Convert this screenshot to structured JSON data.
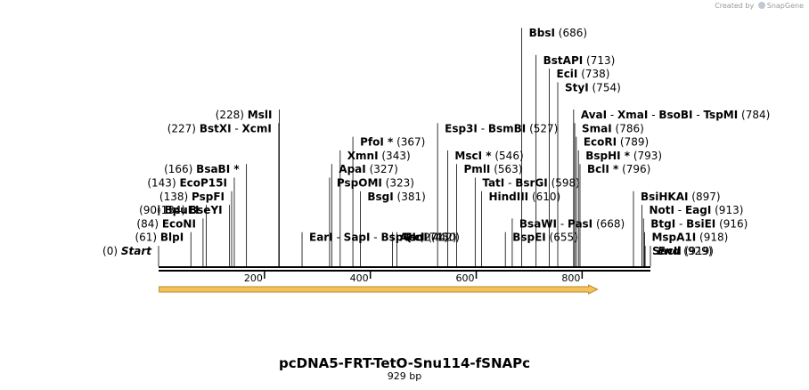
{
  "credit": {
    "prefix": "Created by",
    "brand": "SnapGene"
  },
  "map": {
    "title": "pcDNA5-FRT-TetO-Snu114-fSNAPc",
    "length_label": "929 bp",
    "length_bp": 929,
    "ticks": [
      {
        "pos": 200,
        "label": "200"
      },
      {
        "pos": 400,
        "label": "400"
      },
      {
        "pos": 600,
        "label": "600"
      },
      {
        "pos": 800,
        "label": "800"
      }
    ],
    "feature": {
      "start": 1,
      "end": 829,
      "direction": "forward",
      "fill": "#f5c25a",
      "stroke": "#b88a2b"
    },
    "colors": {
      "line": "#000000",
      "text": "#000000"
    },
    "sites": [
      {
        "pos": 0,
        "side": "left",
        "labels": [
          {
            "name": "Start",
            "italic": true
          }
        ],
        "position_label": "(0)"
      },
      {
        "pos": 61,
        "side": "left",
        "labels": [
          {
            "name": "BlpI"
          }
        ],
        "position_label": "(61)"
      },
      {
        "pos": 84,
        "side": "left",
        "labels": [
          {
            "name": "EcoNI"
          }
        ],
        "position_label": "(84)"
      },
      {
        "pos": 90,
        "side": "left",
        "labels": [
          {
            "name": "BpuEI"
          }
        ],
        "position_label": "(90)"
      },
      {
        "pos": 134,
        "side": "left",
        "labels": [
          {
            "name": "BseYI"
          }
        ],
        "position_label": "(134)"
      },
      {
        "pos": 138,
        "side": "left",
        "labels": [
          {
            "name": "PspFI"
          }
        ],
        "position_label": "(138)"
      },
      {
        "pos": 143,
        "side": "left",
        "labels": [
          {
            "name": "EcoP15I"
          }
        ],
        "position_label": "(143)"
      },
      {
        "pos": 166,
        "side": "left",
        "labels": [
          {
            "name": "BsaBI",
            "star": true
          }
        ],
        "position_label": "(166)"
      },
      {
        "pos": 227,
        "side": "left",
        "labels": [
          {
            "name": "BstXI"
          },
          {
            "name": "XcmI"
          }
        ],
        "position_label": "(227)"
      },
      {
        "pos": 228,
        "side": "left",
        "labels": [
          {
            "name": "MslI"
          }
        ],
        "position_label": "(228)"
      },
      {
        "pos": 271,
        "side": "right",
        "labels": [
          {
            "name": "EarI"
          },
          {
            "name": "SapI"
          },
          {
            "name": "BspQI"
          }
        ],
        "position_label": "(271)"
      },
      {
        "pos": 323,
        "side": "right",
        "labels": [
          {
            "name": "PspOMI"
          }
        ],
        "position_label": "(323)"
      },
      {
        "pos": 327,
        "side": "right",
        "labels": [
          {
            "name": "ApaI"
          }
        ],
        "position_label": "(327)"
      },
      {
        "pos": 343,
        "side": "right",
        "labels": [
          {
            "name": "XmnI"
          }
        ],
        "position_label": "(343)"
      },
      {
        "pos": 367,
        "side": "right",
        "labels": [
          {
            "name": "PfoI",
            "star": true
          }
        ],
        "position_label": "(367)"
      },
      {
        "pos": 381,
        "side": "right",
        "labels": [
          {
            "name": "BsgI"
          }
        ],
        "position_label": "(381)"
      },
      {
        "pos": 442,
        "side": "right",
        "labels": [
          {
            "name": "AccI"
          }
        ],
        "position_label": "(442)"
      },
      {
        "pos": 450,
        "side": "right",
        "labels": [
          {
            "name": "TsoI"
          }
        ],
        "position_label": "(450)"
      },
      {
        "pos": 527,
        "side": "right",
        "labels": [
          {
            "name": "Esp3I"
          },
          {
            "name": "BsmBI"
          }
        ],
        "position_label": "(527)"
      },
      {
        "pos": 546,
        "side": "right",
        "labels": [
          {
            "name": "MscI",
            "star": true
          }
        ],
        "position_label": "(546)"
      },
      {
        "pos": 563,
        "side": "right",
        "labels": [
          {
            "name": "PmlI"
          }
        ],
        "position_label": "(563)"
      },
      {
        "pos": 598,
        "side": "right",
        "labels": [
          {
            "name": "TatI"
          },
          {
            "name": "BsrGI"
          }
        ],
        "position_label": "(598)"
      },
      {
        "pos": 610,
        "side": "right",
        "labels": [
          {
            "name": "HindIII"
          }
        ],
        "position_label": "(610)"
      },
      {
        "pos": 655,
        "side": "right",
        "labels": [
          {
            "name": "BspEI"
          }
        ],
        "position_label": "(655)"
      },
      {
        "pos": 668,
        "side": "right",
        "labels": [
          {
            "name": "BsaWI"
          },
          {
            "name": "PasI"
          }
        ],
        "position_label": "(668)"
      },
      {
        "pos": 686,
        "side": "right",
        "labels": [
          {
            "name": "BbsI"
          }
        ],
        "position_label": "(686)"
      },
      {
        "pos": 713,
        "side": "right",
        "labels": [
          {
            "name": "BstAPI"
          }
        ],
        "position_label": "(713)"
      },
      {
        "pos": 738,
        "side": "right",
        "labels": [
          {
            "name": "EciI"
          }
        ],
        "position_label": "(738)"
      },
      {
        "pos": 754,
        "side": "right",
        "labels": [
          {
            "name": "StyI"
          }
        ],
        "position_label": "(754)"
      },
      {
        "pos": 784,
        "side": "right",
        "labels": [
          {
            "name": "AvaI"
          },
          {
            "name": "XmaI"
          },
          {
            "name": "BsoBI"
          },
          {
            "name": "TspMI"
          }
        ],
        "position_label": "(784)"
      },
      {
        "pos": 786,
        "side": "right",
        "labels": [
          {
            "name": "SmaI"
          }
        ],
        "position_label": "(786)"
      },
      {
        "pos": 789,
        "side": "right",
        "labels": [
          {
            "name": "EcoRI"
          }
        ],
        "position_label": "(789)"
      },
      {
        "pos": 793,
        "side": "right",
        "labels": [
          {
            "name": "BspHI",
            "star": true
          }
        ],
        "position_label": "(793)"
      },
      {
        "pos": 796,
        "side": "right",
        "labels": [
          {
            "name": "BclI",
            "star": true
          }
        ],
        "position_label": "(796)"
      },
      {
        "pos": 897,
        "side": "right",
        "labels": [
          {
            "name": "BsiHKAI"
          }
        ],
        "position_label": "(897)"
      },
      {
        "pos": 913,
        "side": "right",
        "labels": [
          {
            "name": "NotI"
          },
          {
            "name": "EagI"
          }
        ],
        "position_label": "(913)"
      },
      {
        "pos": 916,
        "side": "right",
        "labels": [
          {
            "name": "BtgI"
          },
          {
            "name": "BsiEI"
          }
        ],
        "position_label": "(916)"
      },
      {
        "pos": 918,
        "side": "right",
        "labels": [
          {
            "name": "MspA1I"
          }
        ],
        "position_label": "(918)"
      },
      {
        "pos": 919,
        "side": "right",
        "labels": [
          {
            "name": "SacII"
          }
        ],
        "position_label": "(919)"
      },
      {
        "pos": 929,
        "side": "right",
        "labels": [
          {
            "name": "End",
            "italic": true
          }
        ],
        "position_label": "(929)"
      }
    ]
  }
}
